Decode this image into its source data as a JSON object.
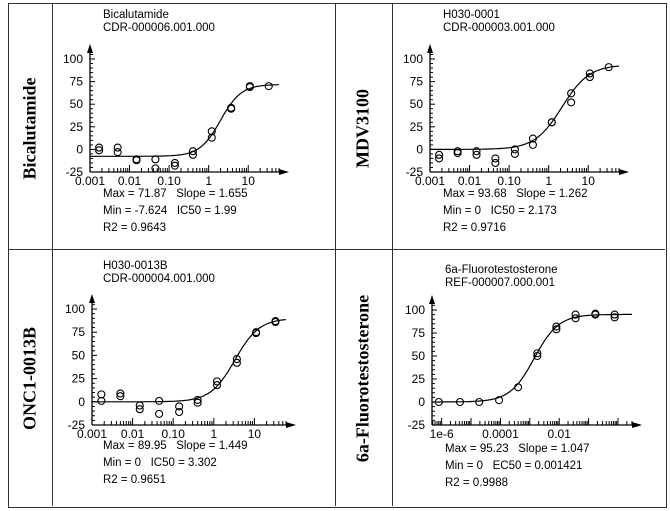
{
  "panels": [
    {
      "label": "Bicalutamide",
      "title": "Bicalutamide",
      "id": "CDR-000006.001.000",
      "stats": [
        "Max = 71.87   Slope = 1.655",
        "Min = -7.624   IC50 = 1.99",
        "R2 = 0.9643"
      ]
    },
    {
      "label": "MDV3100",
      "title": "H030-0001",
      "id": "CDR-000003.001.000",
      "stats": [
        "Max = 93.68   Slope = 1.262",
        "Min = 0   IC50 = 2.173",
        "R2 = 0.9716"
      ]
    },
    {
      "label": "ONC1-0013B",
      "title": "H030-0013B",
      "id": "CDR-000004.001.000",
      "stats": [
        "Max = 89.95   Slope = 1.449",
        "Min = 0   IC50 = 3.302",
        "R2 = 0.9651"
      ]
    },
    {
      "label": "6a-Fluorotestosterone",
      "title": "6a-Fluorotestosterone",
      "id": "REF-000007.000.001",
      "stats": [
        "Max = 95.23   Slope = 1.047",
        "Min = 0   EC50 = 0.001421",
        "R2 = 0.9988"
      ]
    }
  ],
  "chart_data": [
    {
      "type": "scatter",
      "title": "Bicalutamide",
      "xscale": "log",
      "xlim": [
        0.001,
        60
      ],
      "ylim": [
        -25,
        110
      ],
      "xticks": [
        "0.001",
        "0.01",
        "0.10",
        "1",
        "10"
      ],
      "xtick_values": [
        0.001,
        0.01,
        0.1,
        1,
        10
      ],
      "yticks": [
        "100",
        "75",
        "50",
        "25",
        "0",
        "-25"
      ],
      "ytick_values": [
        100,
        75,
        50,
        25,
        0,
        -25
      ],
      "fit": {
        "max": 71.87,
        "min": -7.624,
        "slope": 1.655,
        "ic50": 1.99
      },
      "points": [
        [
          0.0017,
          2
        ],
        [
          0.0017,
          -1
        ],
        [
          0.005,
          2
        ],
        [
          0.005,
          -3
        ],
        [
          0.015,
          -11
        ],
        [
          0.015,
          -12
        ],
        [
          0.045,
          -11
        ],
        [
          0.045,
          -21
        ],
        [
          0.14,
          -15
        ],
        [
          0.14,
          -18
        ],
        [
          0.4,
          -2
        ],
        [
          0.4,
          -6
        ],
        [
          1.2,
          20
        ],
        [
          1.2,
          13
        ],
        [
          3.7,
          45
        ],
        [
          3.7,
          46
        ],
        [
          11,
          70
        ],
        [
          11,
          69
        ],
        [
          33,
          70
        ]
      ]
    },
    {
      "type": "scatter",
      "title": "H030-0001",
      "xscale": "log",
      "xlim": [
        0.001,
        60
      ],
      "ylim": [
        -25,
        110
      ],
      "xticks": [
        "0.001",
        "0.01",
        "0.10",
        "1",
        "10"
      ],
      "xtick_values": [
        0.001,
        0.01,
        0.1,
        1,
        10
      ],
      "yticks": [
        "100",
        "75",
        "50",
        "25",
        "0",
        "-25"
      ],
      "ytick_values": [
        100,
        75,
        50,
        25,
        0,
        -25
      ],
      "fit": {
        "max": 93.68,
        "min": 0,
        "slope": 1.262,
        "ic50": 2.173
      },
      "points": [
        [
          0.0017,
          -6
        ],
        [
          0.0017,
          -10
        ],
        [
          0.005,
          -2
        ],
        [
          0.005,
          -4
        ],
        [
          0.015,
          -2
        ],
        [
          0.015,
          -6
        ],
        [
          0.045,
          -10
        ],
        [
          0.045,
          -15
        ],
        [
          0.14,
          0
        ],
        [
          0.14,
          -5
        ],
        [
          0.4,
          12
        ],
        [
          0.4,
          5
        ],
        [
          1.2,
          30
        ],
        [
          1.2,
          30
        ],
        [
          3.7,
          62
        ],
        [
          3.7,
          52
        ],
        [
          11,
          84
        ],
        [
          11,
          80
        ],
        [
          33,
          91
        ]
      ]
    },
    {
      "type": "scatter",
      "title": "H030-0013B",
      "xscale": "log",
      "xlim": [
        0.001,
        60
      ],
      "ylim": [
        -25,
        110
      ],
      "xticks": [
        "0.001",
        "0.01",
        "0.10",
        "1",
        "10"
      ],
      "xtick_values": [
        0.001,
        0.01,
        0.1,
        1,
        10
      ],
      "yticks": [
        "100",
        "75",
        "50",
        "25",
        "0",
        "-25"
      ],
      "ytick_values": [
        100,
        75,
        50,
        25,
        0,
        -25
      ],
      "fit": {
        "max": 89.95,
        "min": 0,
        "slope": 1.449,
        "ic50": 3.302
      },
      "points": [
        [
          0.0017,
          8
        ],
        [
          0.0017,
          1
        ],
        [
          0.005,
          9
        ],
        [
          0.005,
          6
        ],
        [
          0.015,
          -4
        ],
        [
          0.015,
          -8
        ],
        [
          0.045,
          1
        ],
        [
          0.045,
          -13
        ],
        [
          0.14,
          -5
        ],
        [
          0.14,
          -11
        ],
        [
          0.4,
          2
        ],
        [
          0.4,
          -1
        ],
        [
          1.2,
          22
        ],
        [
          1.2,
          18
        ],
        [
          3.7,
          46
        ],
        [
          3.7,
          42
        ],
        [
          11,
          75
        ],
        [
          11,
          74
        ],
        [
          33,
          87
        ],
        [
          33,
          86
        ]
      ]
    },
    {
      "type": "scatter",
      "title": "6a-Fluorotestosterone",
      "xscale": "log",
      "xlim": [
        4.7e-07,
        3
      ],
      "ylim": [
        -25,
        110
      ],
      "xticks": [
        "1e-6",
        "0.0001",
        "0.01"
      ],
      "xtick_values": [
        1e-06,
        0.0001,
        0.01
      ],
      "yticks": [
        "100",
        "75",
        "50",
        "25",
        "0",
        "-25"
      ],
      "ytick_values": [
        100,
        75,
        50,
        25,
        0,
        -25
      ],
      "fit": {
        "max": 95.23,
        "min": 0,
        "slope": 1.047,
        "ic50": 0.001421
      },
      "points": [
        [
          8e-07,
          0
        ],
        [
          4.2e-06,
          0
        ],
        [
          1.9e-05,
          0
        ],
        [
          9e-05,
          2
        ],
        [
          0.0004,
          16
        ],
        [
          0.0018,
          50
        ],
        [
          0.0018,
          53
        ],
        [
          0.008,
          79
        ],
        [
          0.008,
          82
        ],
        [
          0.036,
          91
        ],
        [
          0.036,
          95
        ],
        [
          0.17,
          95
        ],
        [
          0.17,
          96
        ],
        [
          0.77,
          92
        ],
        [
          0.77,
          95
        ]
      ]
    }
  ]
}
